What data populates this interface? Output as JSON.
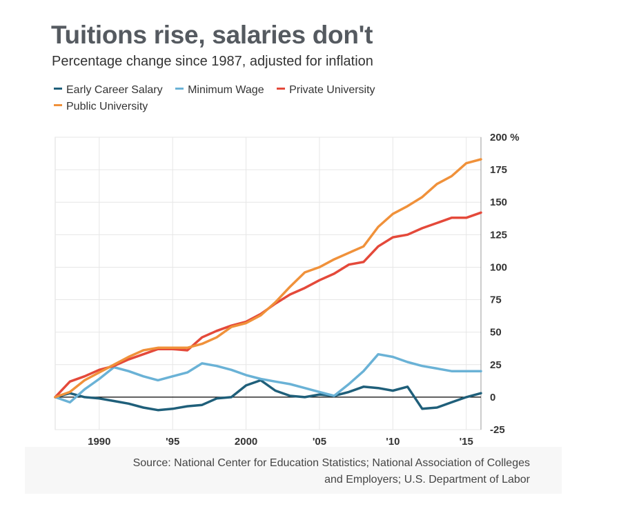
{
  "header": {
    "title": "Tuitions rise, salaries don't",
    "subtitle": "Percentage change since 1987, adjusted for inflation"
  },
  "source": {
    "line1": "Source: National Center for Education Statistics; National Association of Colleges",
    "line2": "and Employers; U.S. Department of Labor"
  },
  "chart_data": {
    "type": "line",
    "title": "Tuitions rise, salaries don't",
    "subtitle": "Percentage change since 1987, adjusted for inflation",
    "xlabel": "",
    "ylabel": "",
    "xlim": [
      1987,
      2016
    ],
    "ylim": [
      -25,
      200
    ],
    "y_ticks": [
      {
        "value": 200,
        "label": "200 %"
      },
      {
        "value": 175,
        "label": "175"
      },
      {
        "value": 150,
        "label": "150"
      },
      {
        "value": 125,
        "label": "125"
      },
      {
        "value": 100,
        "label": "100"
      },
      {
        "value": 75,
        "label": "75"
      },
      {
        "value": 50,
        "label": "50"
      },
      {
        "value": 25,
        "label": "25"
      },
      {
        "value": 0,
        "label": "0"
      },
      {
        "value": -25,
        "label": "-25"
      }
    ],
    "x_ticks": [
      {
        "value": 1990,
        "label": "1990"
      },
      {
        "value": 1995,
        "label": "'95"
      },
      {
        "value": 2000,
        "label": "2000"
      },
      {
        "value": 2005,
        "label": "'05"
      },
      {
        "value": 2010,
        "label": "'10"
      },
      {
        "value": 2015,
        "label": "'15"
      }
    ],
    "grid": true,
    "legend_position": "top-left",
    "series": [
      {
        "name": "Early Career Salary",
        "color": "#1f5f7a",
        "x": [
          1987,
          1988,
          1989,
          1990,
          1991,
          1992,
          1993,
          1994,
          1995,
          1996,
          1997,
          1998,
          1999,
          2000,
          2001,
          2002,
          2003,
          2004,
          2005,
          2006,
          2007,
          2008,
          2009,
          2010,
          2011,
          2012,
          2013,
          2014,
          2015,
          2016
        ],
        "values": [
          0,
          3,
          0,
          -1,
          -3,
          -5,
          -8,
          -10,
          -9,
          -7,
          -6,
          -1,
          0,
          9,
          13,
          5,
          1,
          0,
          2,
          1,
          4,
          8,
          7,
          5,
          8,
          -9,
          -8,
          -4,
          0,
          3
        ]
      },
      {
        "name": "Minimum Wage",
        "color": "#6ab2d6",
        "x": [
          1987,
          1988,
          1989,
          1990,
          1991,
          1992,
          1993,
          1994,
          1995,
          1996,
          1997,
          1998,
          1999,
          2000,
          2001,
          2002,
          2003,
          2004,
          2005,
          2006,
          2007,
          2008,
          2009,
          2010,
          2011,
          2012,
          2013,
          2014,
          2015,
          2016
        ],
        "values": [
          0,
          -4,
          6,
          14,
          23,
          20,
          16,
          13,
          16,
          19,
          26,
          24,
          21,
          17,
          14,
          12,
          10,
          7,
          4,
          1,
          10,
          20,
          33,
          31,
          27,
          24,
          22,
          20,
          20,
          20
        ]
      },
      {
        "name": "Private University",
        "color": "#e4493a",
        "x": [
          1987,
          1988,
          1989,
          1990,
          1991,
          1992,
          1993,
          1994,
          1995,
          1996,
          1997,
          1998,
          1999,
          2000,
          2001,
          2002,
          2003,
          2004,
          2005,
          2006,
          2007,
          2008,
          2009,
          2010,
          2011,
          2012,
          2013,
          2014,
          2015,
          2016
        ],
        "values": [
          0,
          12,
          16,
          21,
          24,
          29,
          33,
          37,
          37,
          36,
          46,
          51,
          55,
          58,
          64,
          72,
          79,
          84,
          90,
          95,
          102,
          104,
          116,
          123,
          125,
          130,
          134,
          138,
          138,
          142
        ]
      },
      {
        "name": "Public University",
        "color": "#f0913a",
        "x": [
          1987,
          1988,
          1989,
          1990,
          1991,
          1992,
          1993,
          1994,
          1995,
          1996,
          1997,
          1998,
          1999,
          2000,
          2001,
          2002,
          2003,
          2004,
          2005,
          2006,
          2007,
          2008,
          2009,
          2010,
          2011,
          2012,
          2013,
          2014,
          2015,
          2016
        ],
        "values": [
          0,
          4,
          13,
          19,
          25,
          31,
          36,
          38,
          38,
          38,
          41,
          46,
          54,
          57,
          63,
          73,
          85,
          96,
          100,
          106,
          111,
          116,
          131,
          141,
          147,
          154,
          164,
          170,
          180,
          183
        ]
      }
    ]
  }
}
